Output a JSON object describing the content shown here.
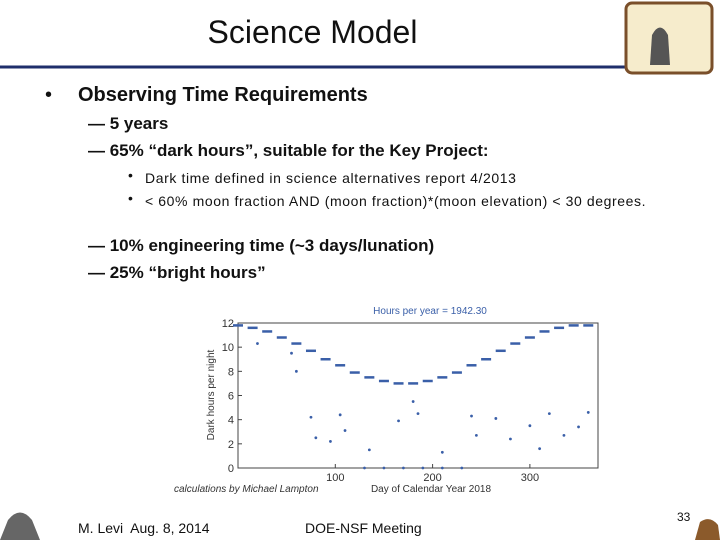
{
  "header": {
    "title": "Science Model"
  },
  "bullets": [
    {
      "level": 1,
      "text": "Observing Time Requirements"
    },
    {
      "level": 2,
      "text": "— 5 years"
    },
    {
      "level": 2,
      "text": "— 65% “dark hours”, suitable for the Key Project:"
    },
    {
      "level": 3,
      "text": "Dark time defined in science alternatives report 4/2013"
    },
    {
      "level": 3,
      "text": "< 60% moon fraction AND (moon fraction)*(moon elevation) < 30 degrees."
    },
    {
      "level": 2,
      "text": "— 10% engineering time (~3 days/lunation)"
    },
    {
      "level": 2,
      "text": "— 25% “bright hours”"
    }
  ],
  "chart_data": {
    "type": "scatter",
    "title": "Hours per year = 1942.30",
    "x_label": "Day of Calendar Year 2018",
    "y_label": "Dark hours per night",
    "annotation": "calculations by Michael Lampton",
    "xlim": [
      0,
      370
    ],
    "ylim": [
      0,
      12
    ],
    "xticks": [
      100,
      200,
      300
    ],
    "yticks": [
      0,
      2,
      4,
      6,
      8,
      10,
      12
    ],
    "series": [
      {
        "color": "#3a5fa8",
        "marker": "dash",
        "x": [
          0,
          15,
          30,
          45,
          60,
          75,
          90,
          105,
          120,
          135,
          150,
          165,
          180,
          195,
          210,
          225,
          240,
          255,
          270,
          285,
          300,
          315,
          330,
          345,
          360
        ],
        "values": [
          11.8,
          11.6,
          11.3,
          10.8,
          10.3,
          9.7,
          9.0,
          8.5,
          7.9,
          7.5,
          7.2,
          7.0,
          7.0,
          7.2,
          7.5,
          7.9,
          8.5,
          9.0,
          9.7,
          10.3,
          10.8,
          11.3,
          11.6,
          11.8,
          11.8
        ]
      },
      {
        "color": "#3a5fa8",
        "marker": "dot",
        "x": [
          20,
          55,
          60,
          75,
          80,
          95,
          105,
          110,
          135,
          165,
          180,
          185,
          210,
          240,
          245,
          265,
          280,
          300,
          310,
          320,
          335,
          350,
          360,
          130,
          150,
          170,
          190,
          210,
          230
        ],
        "values": [
          10.3,
          9.5,
          8,
          4.2,
          2.5,
          2.2,
          4.4,
          3.1,
          1.5,
          3.9,
          5.5,
          4.5,
          1.3,
          4.3,
          2.7,
          4.1,
          2.4,
          3.5,
          1.6,
          4.5,
          2.7,
          3.4,
          4.6,
          0,
          0,
          0,
          0,
          0,
          0
        ]
      }
    ]
  },
  "footer": {
    "author": "M. Levi  Aug. 8, 2014",
    "meeting": "DOE-NSF Meeting",
    "page": "33"
  }
}
